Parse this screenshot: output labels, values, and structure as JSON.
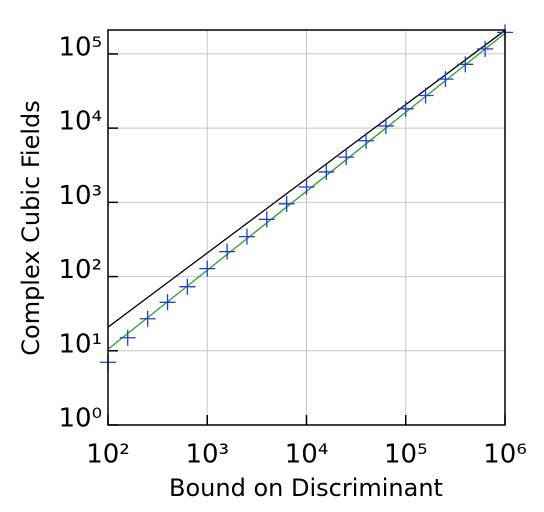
{
  "chart_data": {
    "type": "line",
    "xlabel": "Bound on Discriminant",
    "ylabel": "Complex Cubic Fields",
    "xscale": "log",
    "yscale": "log",
    "grid": true,
    "xlim": [
      100,
      1000000
    ],
    "ylim": [
      1,
      210000
    ],
    "xticks": [
      {
        "value": 100,
        "label": "10²"
      },
      {
        "value": 1000,
        "label": "10³"
      },
      {
        "value": 10000,
        "label": "10⁴"
      },
      {
        "value": 100000,
        "label": "10⁵"
      },
      {
        "value": 1000000,
        "label": "10⁶"
      }
    ],
    "yticks": [
      {
        "value": 1,
        "label": "10⁰"
      },
      {
        "value": 10,
        "label": "10¹"
      },
      {
        "value": 100,
        "label": "10²"
      },
      {
        "value": 1000,
        "label": "10³"
      },
      {
        "value": 10000,
        "label": "10⁴"
      },
      {
        "value": 100000,
        "label": "10⁵"
      }
    ],
    "series": [
      {
        "style": "line",
        "color": "#000000",
        "x": [
          100,
          1000000
        ],
        "values": [
          20.8,
          208000
        ]
      },
      {
        "style": "line",
        "color": "#2ca02c",
        "x": [
          100,
          1000000
        ],
        "values": [
          10.5,
          190000
        ]
      },
      {
        "style": "marker",
        "marker": "+",
        "color": "#1f3fd0",
        "x": [
          100,
          158,
          251,
          398,
          631,
          1000,
          1585,
          2512,
          3981,
          6310,
          10000,
          15849,
          25119,
          39811,
          63096,
          100000,
          158489,
          251189,
          398107,
          630957,
          1000000
        ],
        "values": [
          7,
          15,
          27,
          45,
          73,
          128,
          217,
          345,
          590,
          955,
          1610,
          2570,
          4070,
          6760,
          10700,
          18200,
          27500,
          45700,
          72400,
          117000,
          195000
        ]
      }
    ]
  }
}
